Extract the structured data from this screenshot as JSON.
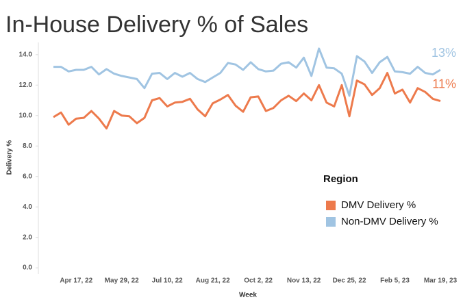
{
  "chart_data": {
    "type": "line",
    "title": "In-House Delivery % of Sales",
    "x_label": "Week",
    "y_label": "Delivery %",
    "categories": [
      null,
      null,
      null,
      "Apr 17, 22",
      null,
      null,
      null,
      null,
      null,
      "May 29, 22",
      null,
      null,
      null,
      null,
      null,
      "Jul 10, 22",
      null,
      null,
      null,
      null,
      null,
      "Aug 21, 22",
      null,
      null,
      null,
      null,
      null,
      "Oct 2, 22",
      null,
      null,
      null,
      null,
      null,
      "Nov 13, 22",
      null,
      null,
      null,
      null,
      null,
      "Dec 25, 22",
      null,
      null,
      null,
      null,
      null,
      "Feb 5, 23",
      null,
      null,
      null,
      null,
      null,
      "Mar 19, 23"
    ],
    "series": [
      {
        "name": "DMV Delivery %",
        "color": "#ed7a4c",
        "end_label": "11%",
        "values": [
          9.9,
          10.2,
          9.4,
          9.8,
          9.85,
          10.3,
          9.8,
          9.15,
          10.3,
          10.0,
          9.95,
          9.5,
          9.85,
          11.0,
          11.15,
          10.6,
          10.85,
          10.9,
          11.1,
          10.4,
          9.95,
          10.8,
          11.05,
          11.35,
          10.65,
          10.25,
          11.2,
          11.25,
          10.3,
          10.5,
          11.0,
          11.3,
          10.95,
          11.45,
          11.0,
          12.0,
          10.85,
          10.6,
          12.0,
          9.95,
          12.3,
          12.05,
          11.35,
          11.8,
          12.8,
          11.45,
          11.7,
          10.85,
          11.8,
          11.55,
          11.1,
          10.95
        ]
      },
      {
        "name": "Non-DMV Delivery %",
        "color": "#a0c4e2",
        "end_label": "13%",
        "values": [
          13.2,
          13.2,
          12.9,
          13.0,
          13.0,
          13.2,
          12.7,
          13.05,
          12.75,
          12.6,
          12.5,
          12.4,
          11.8,
          12.75,
          12.8,
          12.4,
          12.8,
          12.55,
          12.8,
          12.4,
          12.2,
          12.5,
          12.8,
          13.45,
          13.35,
          13.0,
          13.5,
          13.05,
          12.9,
          12.95,
          13.4,
          13.5,
          13.15,
          13.8,
          12.6,
          14.4,
          13.15,
          13.1,
          12.75,
          11.3,
          13.9,
          13.55,
          12.8,
          13.5,
          13.85,
          12.9,
          12.85,
          12.75,
          13.2,
          12.8,
          12.7,
          13.0
        ]
      }
    ],
    "ylim": [
      -0.4,
      14.8
    ],
    "yticks": [
      {
        "value": 0,
        "label": "0.0"
      },
      {
        "value": 2,
        "label": "2.0"
      },
      {
        "value": 4,
        "label": "4.0"
      },
      {
        "value": 6,
        "label": "6.0"
      },
      {
        "value": 8,
        "label": "8.0"
      },
      {
        "value": 10,
        "label": "10.0"
      },
      {
        "value": 12,
        "label": "12.0"
      },
      {
        "value": 14,
        "label": "14.0"
      }
    ],
    "grid": false,
    "legend_title": "Region",
    "legend": "lower right"
  }
}
